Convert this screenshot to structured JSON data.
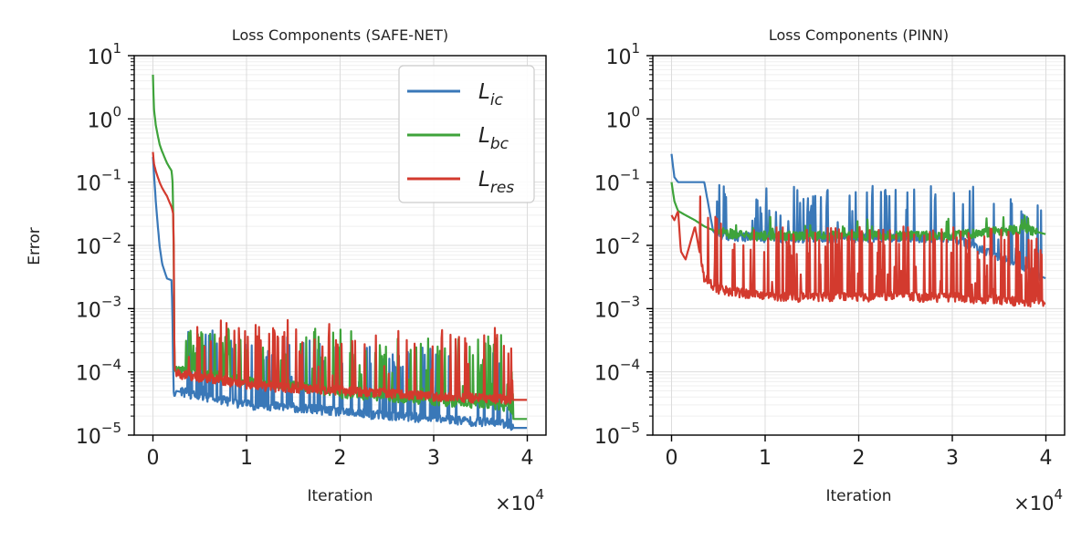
{
  "figure": {
    "background": "#ffffff"
  },
  "colors": {
    "ic": "#3a78b8",
    "bc": "#3ea33a",
    "res": "#d33a2e",
    "grid": "#dcdcdc",
    "axis": "#000000"
  },
  "chart_data": [
    {
      "type": "line",
      "title": "Loss Components (SAFE-NET)",
      "xlabel": "Iteration",
      "ylabel": "Error",
      "xscale_label": "×10",
      "xscale_exp": "4",
      "xlim": [
        -2000,
        42000
      ],
      "ylim": [
        1e-05,
        10
      ],
      "yscale": "log",
      "grid": true,
      "x_ticks": [
        0,
        1,
        2,
        3,
        4
      ],
      "y_tick_exponents": [
        "1",
        "0",
        "−1",
        "−2",
        "−3",
        "−4",
        "−5"
      ],
      "legend": {
        "position": "top-right",
        "entries": [
          {
            "key": "ic",
            "base": "L",
            "sub": "ic"
          },
          {
            "key": "bc",
            "base": "L",
            "sub": "bc"
          },
          {
            "key": "res",
            "base": "L",
            "sub": "res"
          }
        ]
      },
      "series": [
        {
          "name": "L_ic",
          "key": "ic",
          "x": [
            0,
            100,
            300,
            700,
            1000,
            1500,
            2000,
            2100,
            2200,
            2300,
            2500,
            3000,
            5000,
            8000,
            10000,
            15000,
            20000,
            25000,
            30000,
            35000,
            38000,
            38500,
            40000
          ],
          "y": [
            0.25,
            0.15,
            0.05,
            0.01,
            0.005,
            0.003,
            0.0028,
            0.0006,
            5e-05,
            4e-05,
            5e-05,
            4.8e-05,
            4e-05,
            3.4e-05,
            3e-05,
            2.7e-05,
            2.3e-05,
            2e-05,
            1.8e-05,
            1.6e-05,
            1.5e-05,
            1.3e-05,
            1.3e-05
          ],
          "noise": {
            "from": 3000,
            "to": 38500,
            "floor_factor": 1,
            "spike_max": 0.0005,
            "count": 95,
            "seed": 11
          }
        },
        {
          "name": "L_bc",
          "key": "bc",
          "x": [
            0,
            100,
            300,
            700,
            1000,
            1500,
            2000,
            2100,
            2200,
            2300,
            2500,
            3000,
            5000,
            8000,
            10000,
            15000,
            20000,
            25000,
            30000,
            35000,
            38000,
            38500,
            40000
          ],
          "y": [
            5,
            1.5,
            0.8,
            0.4,
            0.3,
            0.2,
            0.15,
            0.1,
            0.02,
            0.0001,
            0.00012,
            0.00011,
            0.0001,
            8e-05,
            7e-05,
            6e-05,
            4.5e-05,
            4e-05,
            3.5e-05,
            3e-05,
            2.8e-05,
            1.8e-05,
            1.8e-05
          ],
          "noise": {
            "from": 2500,
            "to": 38500,
            "floor_factor": 1,
            "spike_max": 0.0005,
            "count": 110,
            "seed": 23
          }
        },
        {
          "name": "L_res",
          "key": "res",
          "x": [
            0,
            100,
            300,
            700,
            1000,
            1500,
            2000,
            2100,
            2200,
            2300,
            2500,
            3000,
            5000,
            8000,
            10000,
            15000,
            20000,
            25000,
            30000,
            35000,
            38000,
            38500,
            40000
          ],
          "y": [
            0.3,
            0.2,
            0.15,
            0.1,
            0.08,
            0.06,
            0.04,
            0.035,
            0.03,
            0.00011,
            0.0001,
            9e-05,
            8e-05,
            7e-05,
            6e-05,
            5.5e-05,
            5e-05,
            4.5e-05,
            4e-05,
            3.8e-05,
            3.6e-05,
            3.6e-05,
            3.6e-05
          ],
          "noise": {
            "from": 2500,
            "to": 38500,
            "floor_factor": 1,
            "spike_max": 0.0007,
            "count": 85,
            "seed": 37
          }
        }
      ]
    },
    {
      "type": "line",
      "title": "Loss Components (PINN)",
      "xlabel": "Iteration",
      "ylabel": "",
      "xscale_label": "×10",
      "xscale_exp": "4",
      "xlim": [
        -2000,
        42000
      ],
      "ylim": [
        1e-05,
        10
      ],
      "yscale": "log",
      "grid": true,
      "x_ticks": [
        0,
        1,
        2,
        3,
        4
      ],
      "y_tick_exponents": [
        "1",
        "0",
        "−1",
        "−2",
        "−3",
        "−4",
        "−5"
      ],
      "series": [
        {
          "name": "L_ic",
          "key": "ic",
          "x": [
            0,
            300,
            700,
            1500,
            2500,
            3500,
            4500,
            6000,
            10000,
            20000,
            30000,
            40000
          ],
          "y": [
            0.28,
            0.12,
            0.1,
            0.1,
            0.1,
            0.1,
            0.015,
            0.014,
            0.013,
            0.013,
            0.013,
            0.003
          ],
          "noise": {
            "from": 4500,
            "to": 39500,
            "floor_factor": 1,
            "spike_max": 0.09,
            "count": 70,
            "seed": 51
          }
        },
        {
          "name": "L_bc",
          "key": "bc",
          "x": [
            0,
            300,
            700,
            1500,
            2500,
            3500,
            5000,
            8000,
            10000,
            20000,
            30000,
            38000,
            40000
          ],
          "y": [
            0.1,
            0.05,
            0.035,
            0.03,
            0.025,
            0.02,
            0.016,
            0.014,
            0.014,
            0.014,
            0.014,
            0.018,
            0.015
          ],
          "noise": {
            "from": 5000,
            "to": 39000,
            "floor_factor": 1,
            "spike_max": 0.03,
            "count": 40,
            "seed": 62
          }
        },
        {
          "name": "L_res",
          "key": "res",
          "x": [
            0,
            300,
            700,
            1000,
            1500,
            2500,
            3500,
            5000,
            10000,
            20000,
            30000,
            40000
          ],
          "y": [
            0.03,
            0.025,
            0.035,
            0.008,
            0.006,
            0.02,
            0.003,
            0.002,
            0.0015,
            0.0015,
            0.0015,
            0.0012
          ],
          "noise": {
            "from": 3000,
            "to": 39800,
            "floor_factor": 1,
            "spike_max": 0.15,
            "count": 170,
            "seed": 77,
            "dense": true
          }
        }
      ]
    }
  ]
}
